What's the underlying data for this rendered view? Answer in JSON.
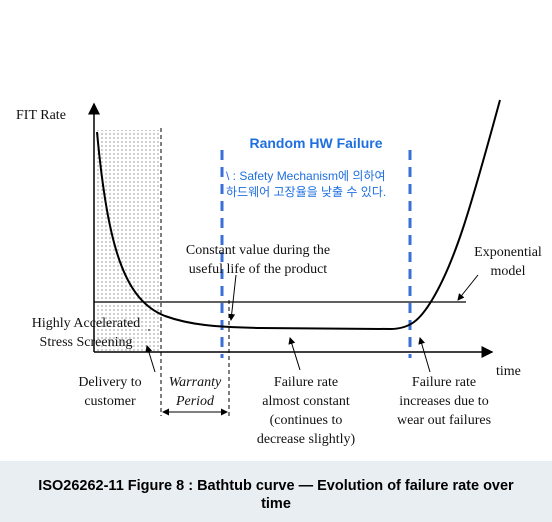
{
  "figure": {
    "axis_y_label": "FIT Rate",
    "axis_x_label": "time",
    "region_title": "Random HW Failure",
    "region_note": [
      "\\ : Safety Mechanism에 의하여",
      "하드웨어 고장율을 낮출 수 있다."
    ],
    "constant_value": [
      "Constant value during the",
      "useful life of the product"
    ],
    "exponential": [
      "Exponential",
      "model"
    ],
    "screening": [
      "Highly Accelerated",
      "Stress Screening"
    ],
    "delivery": [
      "Delivery to",
      "customer"
    ],
    "warranty": [
      "Warranty",
      "Period"
    ],
    "almost_constant": [
      "Failure rate",
      "almost constant",
      "(continues to",
      "decrease slightly)"
    ],
    "wear_out": [
      "Failure rate",
      "increases due to",
      "wear out failures"
    ]
  },
  "caption": [
    "ISO26262-11 Figure 8 : Bathtub curve — Evolution of failure rate over",
    "time"
  ]
}
